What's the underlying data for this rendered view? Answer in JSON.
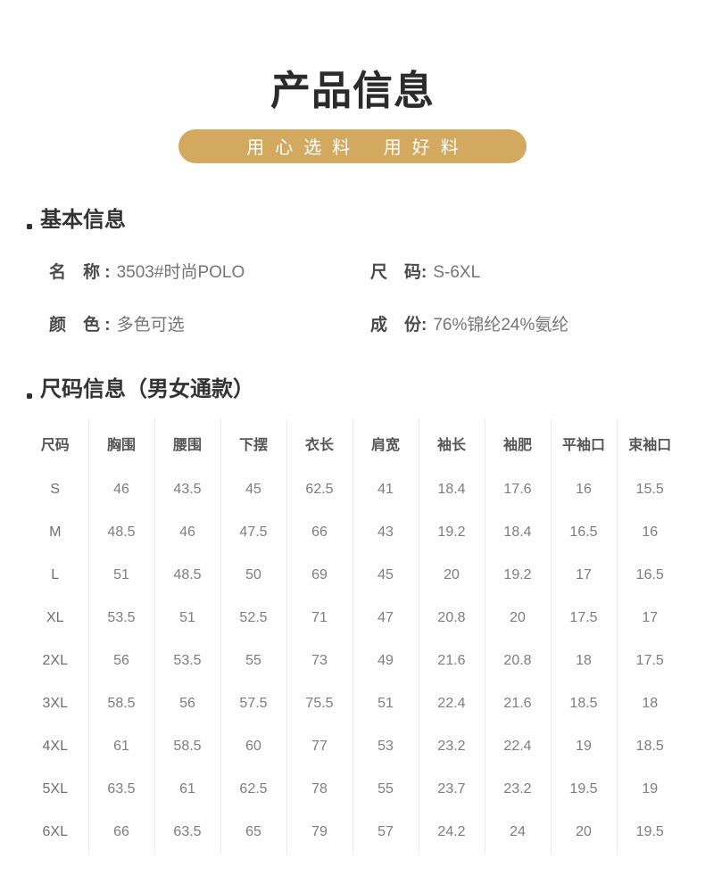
{
  "page": {
    "title": "产品信息",
    "banner_tagline": "用心选料 用好料"
  },
  "icons": {
    "bullet": "square-dot"
  },
  "colors": {
    "accent_gold": "#d3a95f",
    "title_text": "#2b2b2b",
    "heading_text": "#333333",
    "label_text": "#4a4a4a",
    "value_text": "#757575",
    "table_header_text": "#565656",
    "table_cell_text": "#7d7d7d",
    "divider": "#ececec",
    "banner_text": "#ffffff"
  },
  "basic_info": {
    "heading": "基本信息",
    "fields": [
      {
        "label": "名　称 :",
        "value": "3503#时尚POLO"
      },
      {
        "label": "尺　码:",
        "value": "S-6XL"
      },
      {
        "label": "颜　色 :",
        "value": "多色可选"
      },
      {
        "label": "成　份:",
        "value": "76%锦纶24%氨纶"
      }
    ]
  },
  "size_info": {
    "heading": "尺码信息（男女通款）",
    "table": {
      "columns": [
        "尺码",
        "胸围",
        "腰围",
        "下摆",
        "衣长",
        "肩宽",
        "袖长",
        "袖肥",
        "平袖口",
        "束袖口"
      ],
      "rows": [
        [
          "S",
          "46",
          "43.5",
          "45",
          "62.5",
          "41",
          "18.4",
          "17.6",
          "16",
          "15.5"
        ],
        [
          "M",
          "48.5",
          "46",
          "47.5",
          "66",
          "43",
          "19.2",
          "18.4",
          "16.5",
          "16"
        ],
        [
          "L",
          "51",
          "48.5",
          "50",
          "69",
          "45",
          "20",
          "19.2",
          "17",
          "16.5"
        ],
        [
          "XL",
          "53.5",
          "51",
          "52.5",
          "71",
          "47",
          "20.8",
          "20",
          "17.5",
          "17"
        ],
        [
          "2XL",
          "56",
          "53.5",
          "55",
          "73",
          "49",
          "21.6",
          "20.8",
          "18",
          "17.5"
        ],
        [
          "3XL",
          "58.5",
          "56",
          "57.5",
          "75.5",
          "51",
          "22.4",
          "21.6",
          "18.5",
          "18"
        ],
        [
          "4XL",
          "61",
          "58.5",
          "60",
          "77",
          "53",
          "23.2",
          "22.4",
          "19",
          "18.5"
        ],
        [
          "5XL",
          "63.5",
          "61",
          "62.5",
          "78",
          "55",
          "23.7",
          "23.2",
          "19.5",
          "19"
        ],
        [
          "6XL",
          "66",
          "63.5",
          "65",
          "79",
          "57",
          "24.2",
          "24",
          "20",
          "19.5"
        ]
      ]
    }
  }
}
